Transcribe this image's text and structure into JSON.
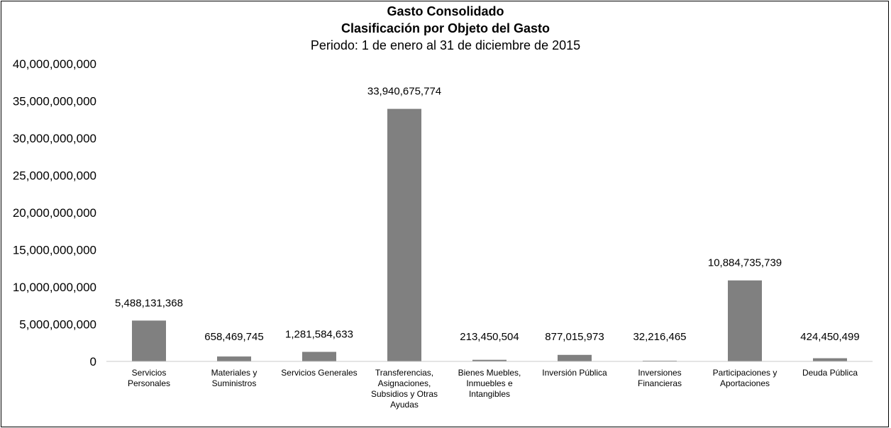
{
  "chart_data": {
    "type": "bar",
    "title": "Gasto Consolidado",
    "subtitle": "Clasificación por Objeto del Gasto",
    "period": "Periodo: 1 de enero al 31 de diciembre de 2015",
    "categories": [
      [
        "Servicios",
        "Personales"
      ],
      [
        "Materiales y",
        "Suministros"
      ],
      [
        "Servicios Generales"
      ],
      [
        "Transferencias,",
        "Asignaciones,",
        "Subsidios y Otras",
        "Ayudas"
      ],
      [
        "Bienes Muebles,",
        "Inmuebles e",
        "Intangibles"
      ],
      [
        "Inversión Pública"
      ],
      [
        "Inversiones",
        "Financieras"
      ],
      [
        "Participaciones y",
        "Aportaciones"
      ],
      [
        "Deuda Pública"
      ]
    ],
    "values": [
      5488131368,
      658469745,
      1281584633,
      33940675774,
      213450504,
      877015973,
      32216465,
      10884735739,
      424450499
    ],
    "value_labels": [
      "5,488,131,368",
      "658,469,745",
      "1,281,584,633",
      "33,940,675,774",
      "213,450,504",
      "877,015,973",
      "32,216,465",
      "10,884,735,739",
      "424,450,499"
    ],
    "yticks": [
      0,
      5000000000,
      10000000000,
      15000000000,
      20000000000,
      25000000000,
      30000000000,
      35000000000,
      40000000000
    ],
    "ytick_labels": [
      "0",
      "5,000,000,000",
      "10,000,000,000",
      "15,000,000,000",
      "20,000,000,000",
      "25,000,000,000",
      "30,000,000,000",
      "35,000,000,000",
      "40,000,000,000"
    ],
    "ylim": [
      0,
      40000000000
    ],
    "bar_color": "#808080",
    "grid": false,
    "legend": "none"
  }
}
